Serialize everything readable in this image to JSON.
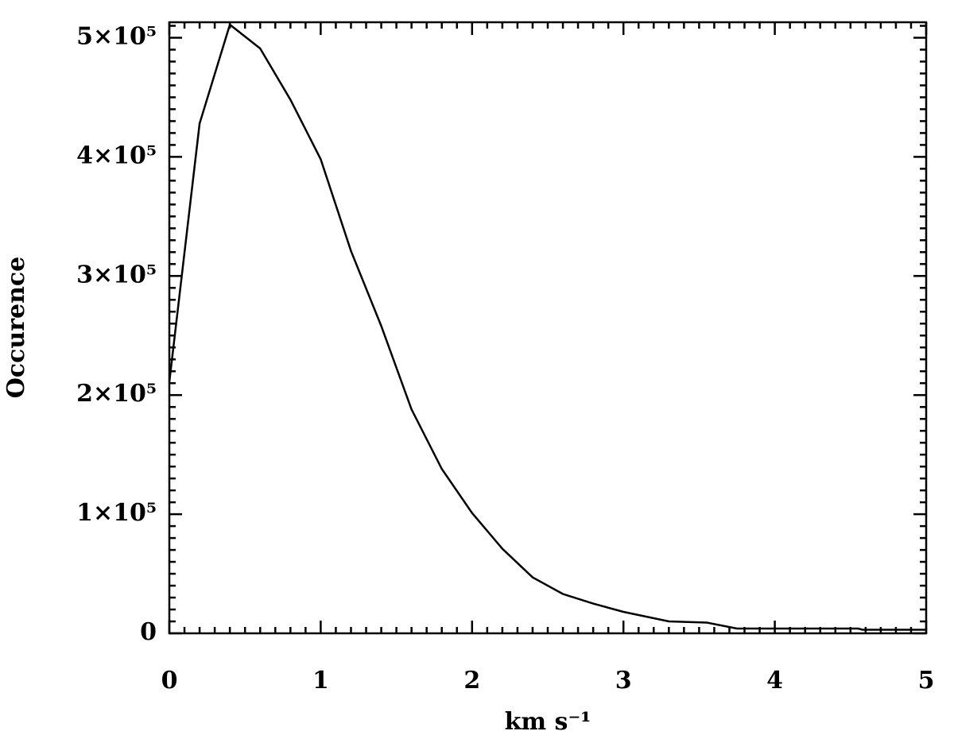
{
  "chart_data": {
    "type": "line",
    "x_label": "km s⁻¹",
    "y_label": "Occurence",
    "x": [
      0,
      0.2,
      0.4,
      0.6,
      0.8,
      1.0,
      1.2,
      1.4,
      1.6,
      1.8,
      2.0,
      2.2,
      2.4,
      2.6,
      2.8,
      3.0,
      3.3,
      3.55,
      3.75,
      4.55,
      4.58,
      5.0
    ],
    "series": [
      {
        "color": "#000000",
        "values": [
          211000,
          428000,
          511000,
          491000,
          448000,
          398000,
          321000,
          258000,
          188000,
          138000,
          101000,
          71000,
          47000,
          33000,
          25000,
          18000,
          10000,
          9000,
          4000,
          4000,
          3000,
          3000
        ]
      }
    ],
    "xlim": [
      0,
      5
    ],
    "xticks": [
      0,
      1,
      2,
      3,
      4,
      5
    ],
    "ylim": [
      0,
      513000
    ],
    "yticks": [
      0,
      {
        "value": 100000,
        "label": "1×10⁵"
      },
      {
        "value": 200000,
        "label": "2×10⁵"
      },
      {
        "value": 300000,
        "label": "3×10⁵"
      },
      {
        "value": 400000,
        "label": "4×10⁵"
      },
      {
        "value": 500000,
        "label": "5×10⁵"
      }
    ],
    "minor_per_major": 10,
    "grid": false
  }
}
